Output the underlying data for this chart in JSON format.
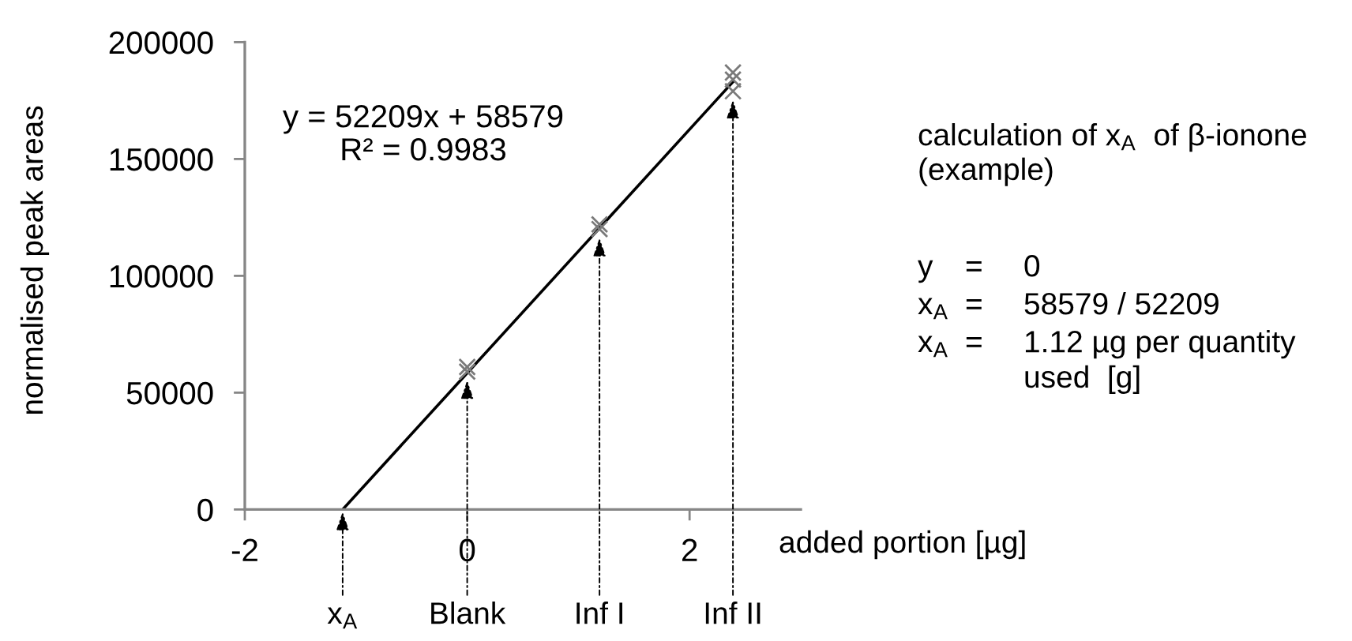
{
  "chart_data": {
    "type": "scatter",
    "xlabel": "added portion [µg]",
    "ylabel": "normalised peak areas",
    "xlim": [
      -2,
      3
    ],
    "ylim": [
      0,
      200000
    ],
    "xticks": [
      -2,
      0,
      2
    ],
    "yticks": [
      0,
      50000,
      100000,
      150000,
      200000
    ],
    "series": [
      {
        "x": [
          0,
          0,
          1.19,
          1.19,
          2.39,
          2.39,
          2.39
        ],
        "values": [
          59000,
          61000,
          120000,
          122000,
          179000,
          184000,
          187000
        ],
        "color": "#7a7a7a",
        "marker": "cross"
      },
      {
        "type": "line",
        "x": [
          -1.12,
          2.39
        ],
        "values": [
          0,
          183000
        ],
        "color": "#000000",
        "line_style": "solid"
      }
    ],
    "annotations": [
      "y = 52209x + 58579\nR² = 0.9983",
      "calculation of x$_{A}$  of β-ionone\n(example)",
      "y",
      "=",
      "0",
      "x$_{A}$",
      "=",
      "58579 / 52209",
      "x$_{A}$",
      "=",
      "1.12 µg per quantity\nused  [g]",
      {
        "text": "x$_{A}$",
        "x": -1.12,
        "y": 0
      },
      {
        "text": "Blank",
        "x": 0,
        "y": 59000
      },
      {
        "text": "Inf I",
        "x": 1.19,
        "y": 120000
      },
      {
        "text": "Inf II",
        "x": 2.39,
        "y": 179000
      }
    ]
  }
}
